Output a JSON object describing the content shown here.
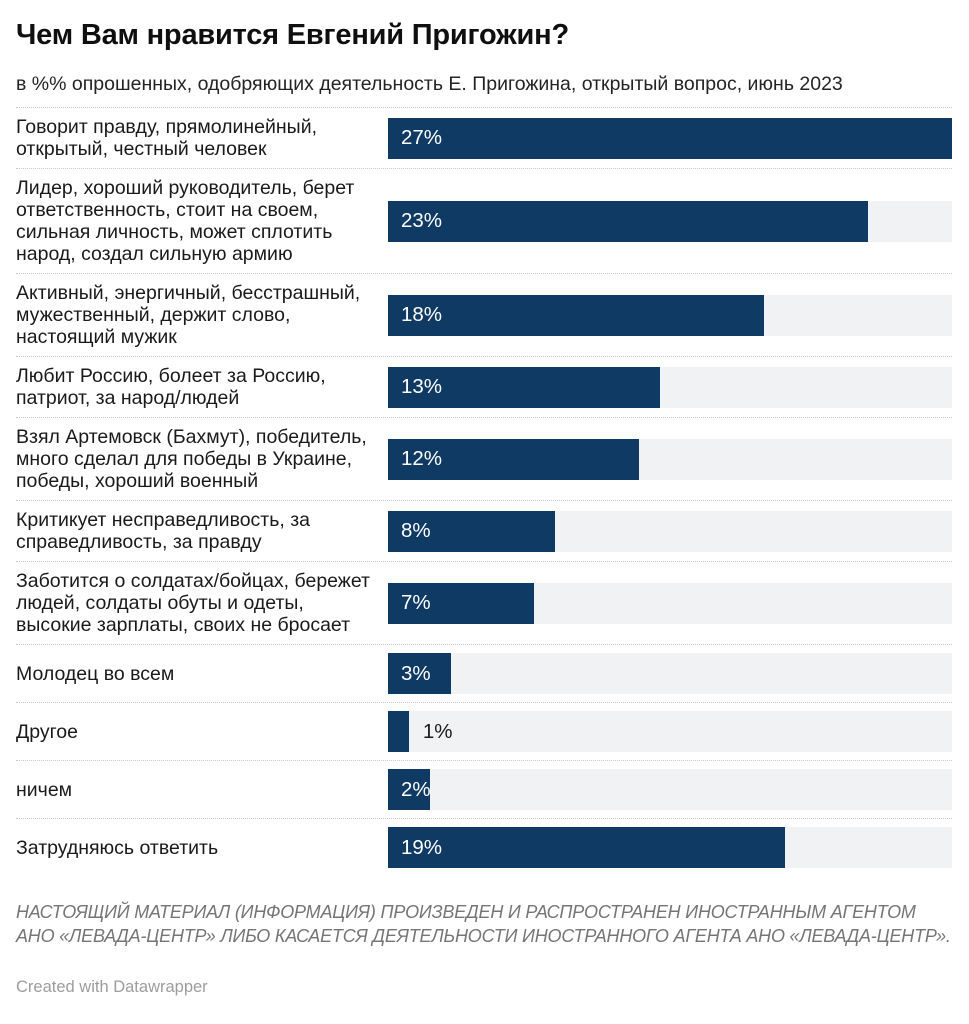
{
  "header": {
    "title": "Чем Вам нравится Евгений Пригожин?",
    "subtitle": "в %% опрошенных, одобряющих деятельность Е. Пригожина, открытый вопрос, июнь 2023"
  },
  "chart_data": {
    "type": "bar",
    "orientation": "horizontal",
    "unit": "%",
    "xlim": [
      0,
      27
    ],
    "grid": false,
    "legend": false,
    "bar_color": "#0e3a63",
    "track_color": "#f1f2f3",
    "categories": [
      "Говорит правду, прямолинейный, открытый, честный человек",
      "Лидер, хороший руководитель, берет ответственность, стоит на своем, сильная личность, может сплотить народ, создал сильную армию",
      "Активный, энергичный, бесстрашный, мужественный, держит слово, настоящий мужик",
      "Любит Россию, болеет за Россию, патриот, за народ/людей",
      "Взял Артемовск (Бахмут), победитель, много сделал для победы в Украине, победы, хороший военный",
      "Критикует несправедливость, за справедливость, за правду",
      "Заботится о солдатах/бойцах, бережет людей, солдаты обуты и одеты, высокие зарплаты, своих не бросает",
      "Молодец во всем",
      "Другое",
      "ничем",
      "Затрудняюсь ответить"
    ],
    "values": [
      27,
      23,
      18,
      13,
      12,
      8,
      7,
      3,
      1,
      2,
      19
    ],
    "value_labels": [
      "27%",
      "23%",
      "18%",
      "13%",
      "12%",
      "8%",
      "7%",
      "3%",
      "1%",
      "2%",
      "19%"
    ],
    "label_positions": [
      "inside",
      "inside",
      "inside",
      "inside",
      "inside",
      "inside",
      "inside",
      "inside",
      "outside",
      "inside",
      "inside"
    ]
  },
  "footer": {
    "disclaimer": "НАСТОЯЩИЙ МАТЕРИАЛ (ИНФОРМАЦИЯ) ПРОИЗВЕДЕН И РАСПРОСТРАНЕН ИНОСТРАННЫМ АГЕНТОМ АНО «ЛЕВАДА-ЦЕНТР» ЛИБО КАСАЕТСЯ ДЕЯТЕЛЬНОСТИ ИНОСТРАННОГО АГЕНТА АНО «ЛЕВАДА-ЦЕНТР».",
    "credit": "Created with Datawrapper"
  }
}
